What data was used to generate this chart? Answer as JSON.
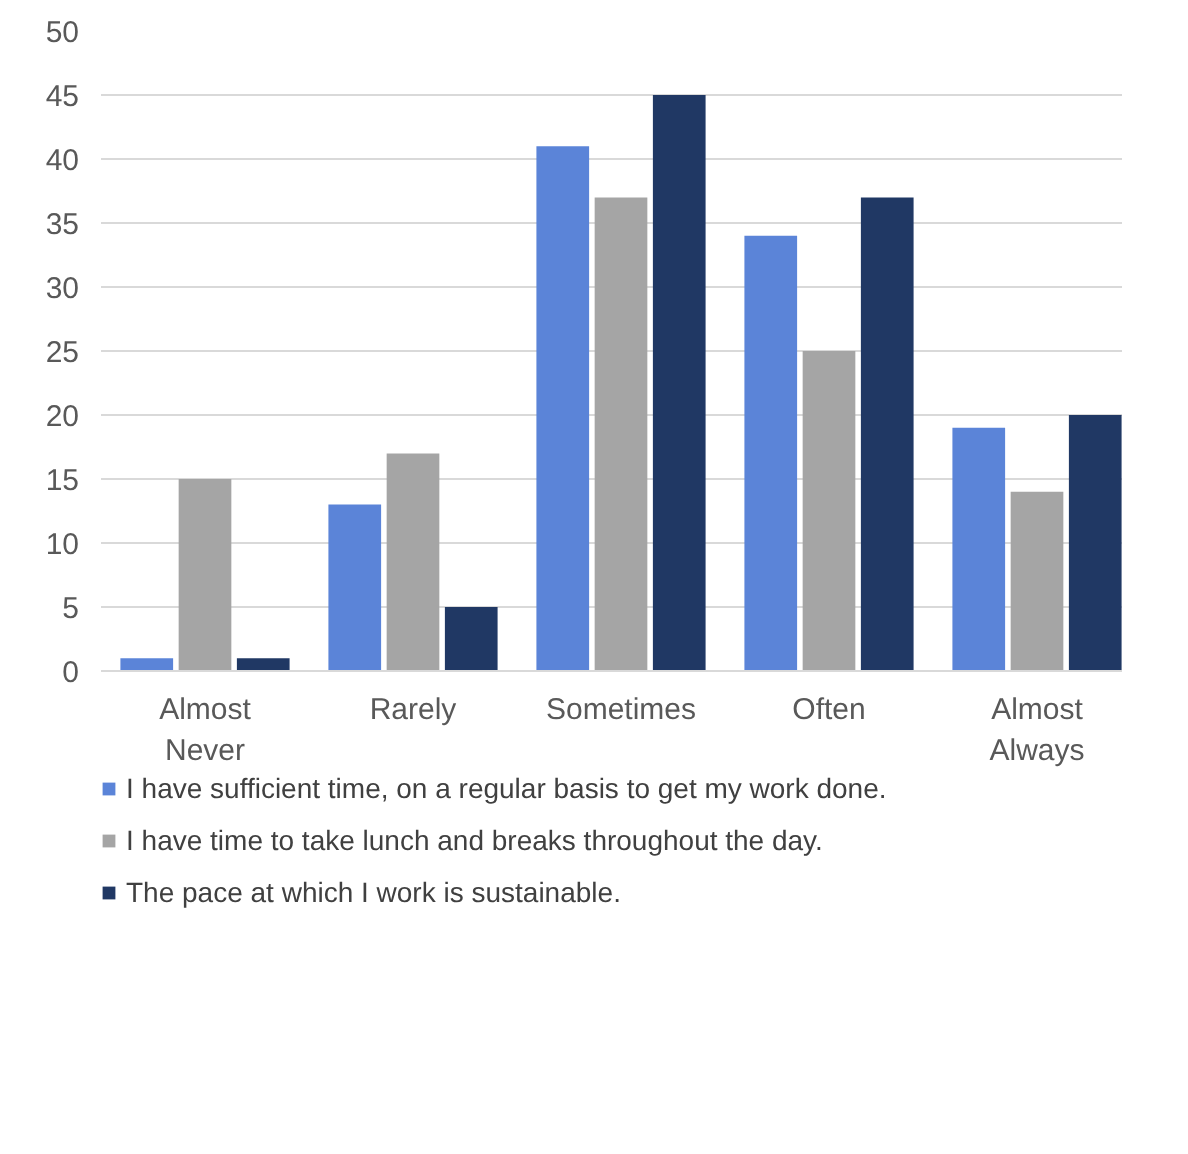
{
  "chart_data": {
    "type": "bar",
    "categories": [
      "Almost Never",
      "Rarely",
      "Sometimes",
      "Often",
      "Almost Always"
    ],
    "series": [
      {
        "name": "I have sufficient time, on a regular basis to get my work done.",
        "color": "#5b84d8",
        "values": [
          1,
          13,
          41,
          34,
          19
        ]
      },
      {
        "name": "I have time to take lunch and breaks throughout the day.",
        "color": "#a5a5a5",
        "values": [
          15,
          17,
          37,
          25,
          14
        ]
      },
      {
        "name": "The pace at which I work is sustainable.",
        "color": "#203864",
        "values": [
          1,
          5,
          45,
          37,
          20
        ]
      }
    ],
    "ylim": [
      0,
      50
    ],
    "yticks": [
      0,
      5,
      10,
      15,
      20,
      25,
      30,
      35,
      40,
      45,
      50
    ],
    "grid": "y",
    "legend": "bottom"
  }
}
